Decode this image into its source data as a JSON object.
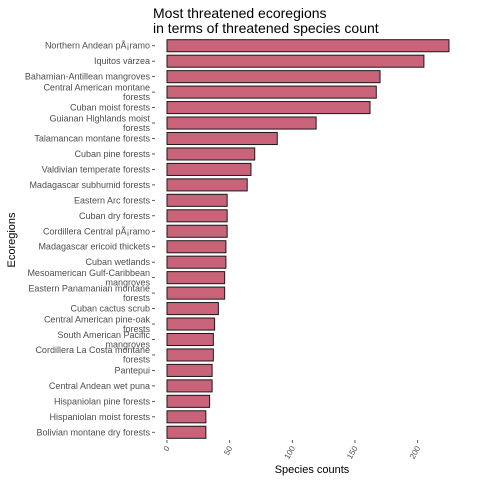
{
  "chart_data": {
    "type": "bar",
    "orientation": "horizontal",
    "title_lines": [
      "Most threatened ecoregions",
      "in terms of threatened species count"
    ],
    "xlabel": "Species counts",
    "ylabel": "Ecoregions",
    "xlim": [
      0,
      233
    ],
    "xticks": [
      0,
      50,
      100,
      150,
      200
    ],
    "xtick_labels": [
      "0",
      "50",
      "100",
      "150",
      "200"
    ],
    "grid": false,
    "bar_color": "#c9637a",
    "bar_edge_color": "#1a1a1a",
    "categories": [
      {
        "lines": [
          "Northern Andean pÃ¡ramo"
        ]
      },
      {
        "lines": [
          "Iquitos várzea"
        ]
      },
      {
        "lines": [
          "Bahamian-Antillean mangroves"
        ]
      },
      {
        "lines": [
          "Central American montane",
          "forests"
        ]
      },
      {
        "lines": [
          "Cuban moist forests"
        ]
      },
      {
        "lines": [
          "Guianan Highlands moist",
          "forests"
        ]
      },
      {
        "lines": [
          "Talamancan montane forests"
        ]
      },
      {
        "lines": [
          "Cuban pine forests"
        ]
      },
      {
        "lines": [
          "Valdivian temperate forests"
        ]
      },
      {
        "lines": [
          "Madagascar subhumid forests"
        ]
      },
      {
        "lines": [
          "Eastern Arc forests"
        ]
      },
      {
        "lines": [
          "Cuban dry forests"
        ]
      },
      {
        "lines": [
          "Cordillera Central pÃ¡ramo"
        ]
      },
      {
        "lines": [
          "Madagascar ericoid thickets"
        ]
      },
      {
        "lines": [
          "Cuban wetlands"
        ]
      },
      {
        "lines": [
          "Mesoamerican Gulf-Caribbean",
          "mangroves"
        ]
      },
      {
        "lines": [
          "Eastern Panamanian montane",
          "forests"
        ]
      },
      {
        "lines": [
          "Cuban cactus scrub"
        ]
      },
      {
        "lines": [
          "Central American pine-oak",
          "forests"
        ]
      },
      {
        "lines": [
          "South American Pacific",
          "mangroves"
        ]
      },
      {
        "lines": [
          "Cordillera La Costa montane",
          "forests"
        ]
      },
      {
        "lines": [
          "Pantepui"
        ]
      },
      {
        "lines": [
          "Central Andean wet puna"
        ]
      },
      {
        "lines": [
          "Hispaniolan pine forests"
        ]
      },
      {
        "lines": [
          "Hispaniolan moist forests"
        ]
      },
      {
        "lines": [
          "Bolivian montane dry forests"
        ]
      }
    ],
    "values": [
      225,
      205,
      170,
      167,
      162,
      119,
      88,
      70,
      67,
      64,
      48,
      48,
      48,
      47,
      47,
      46,
      46,
      41,
      38,
      37,
      37,
      36,
      36,
      34,
      31,
      31
    ]
  }
}
